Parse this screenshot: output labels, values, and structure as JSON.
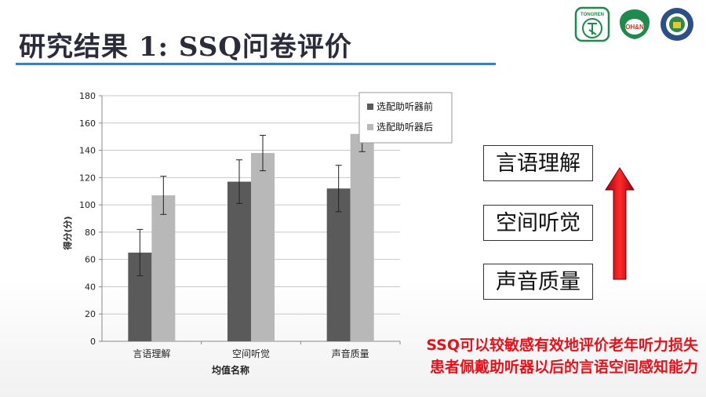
{
  "slide": {
    "title": "研究结果 1:  SSQ问卷评价",
    "logo1_text": "TONGREN",
    "logo2_text": "OH&N",
    "categories_side": [
      "言语理解",
      "空间听觉",
      "声音质量"
    ],
    "conclusion_line1": "SSQ可以较敏感有效地评价老年听力损失",
    "conclusion_line2": "患者佩戴助听器以后的言语空间感知能力"
  },
  "colors": {
    "series_before": "#5a5a5a",
    "series_after": "#b8b8b8",
    "accent_red": "#e8101a",
    "title_rule": "#3a7fc1"
  },
  "chart_data": {
    "type": "bar",
    "categories": [
      "言语理解",
      "空间听觉",
      "声音质量"
    ],
    "series": [
      {
        "name": "选配助听器前",
        "values": [
          65,
          117,
          112
        ],
        "error": [
          17,
          16,
          17
        ]
      },
      {
        "name": "选配助听器后",
        "values": [
          107,
          138,
          152
        ],
        "error": [
          14,
          13,
          13
        ]
      }
    ],
    "xlabel": "均值名称",
    "ylabel": "得分(分)",
    "ylim": [
      0,
      180
    ],
    "yticks": [
      0,
      20,
      40,
      60,
      80,
      100,
      120,
      140,
      160,
      180
    ],
    "grid": true,
    "legend": "top-right"
  }
}
